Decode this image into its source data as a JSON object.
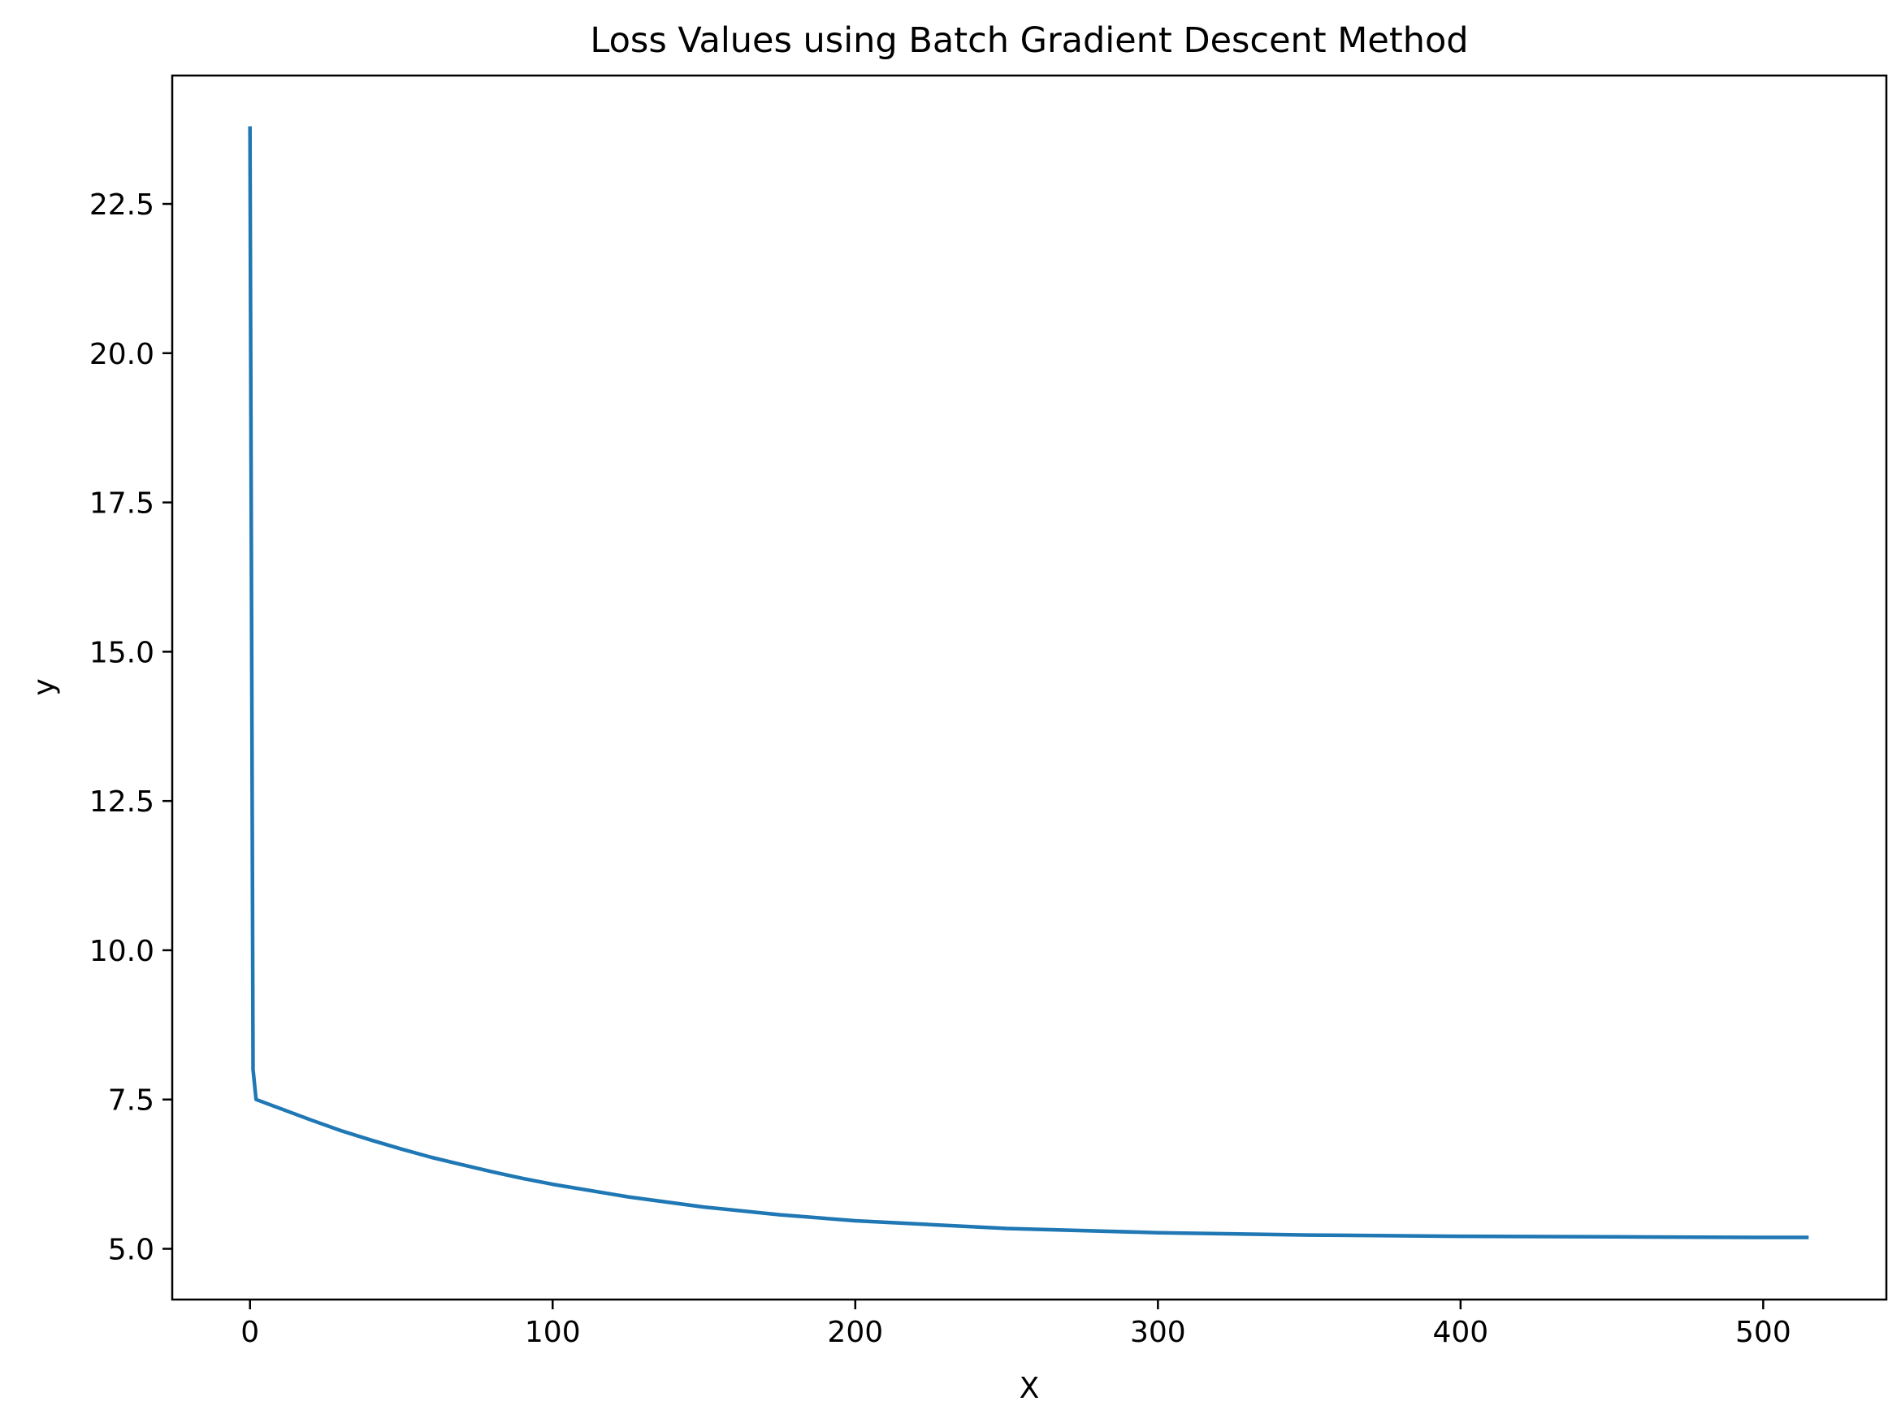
{
  "chart_data": {
    "type": "line",
    "title": "Loss Values using Batch Gradient Descent Method",
    "xlabel": "X",
    "ylabel": "y",
    "xlim": [
      -25.7,
      540.7
    ],
    "ylim": [
      4.15,
      24.65
    ],
    "xticks": [
      0,
      100,
      200,
      300,
      400,
      500
    ],
    "xtick_labels": [
      "0",
      "100",
      "200",
      "300",
      "400",
      "500"
    ],
    "yticks": [
      5.0,
      7.5,
      10.0,
      12.5,
      15.0,
      17.5,
      20.0,
      22.5
    ],
    "ytick_labels": [
      "5.0",
      "7.5",
      "10.0",
      "12.5",
      "15.0",
      "17.5",
      "20.0",
      "22.5"
    ],
    "grid": false,
    "line_color": "#1f77b4",
    "series": [
      {
        "x": [
          0,
          1,
          2,
          10,
          20,
          30,
          40,
          50,
          60,
          70,
          80,
          90,
          100,
          125,
          150,
          175,
          200,
          250,
          300,
          350,
          400,
          450,
          500,
          515
        ],
        "values": [
          23.8,
          8.0,
          7.5,
          7.35,
          7.16,
          6.98,
          6.82,
          6.67,
          6.53,
          6.41,
          6.29,
          6.18,
          6.08,
          5.87,
          5.7,
          5.57,
          5.47,
          5.34,
          5.27,
          5.23,
          5.21,
          5.2,
          5.19,
          5.19
        ]
      }
    ]
  }
}
